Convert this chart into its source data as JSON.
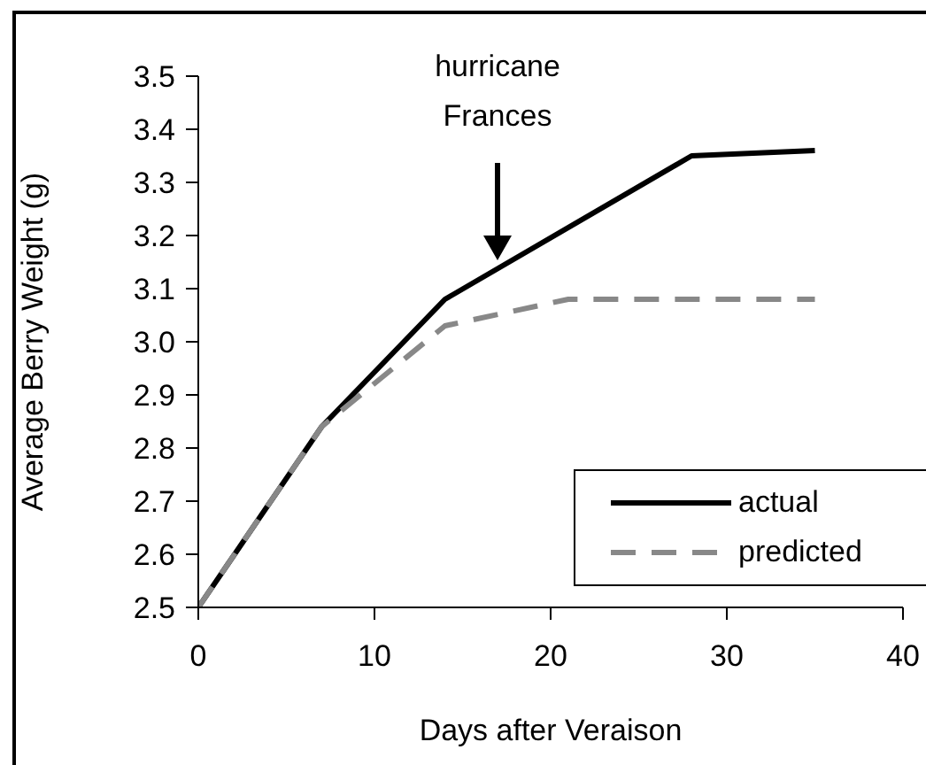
{
  "chart_data": {
    "type": "line",
    "xlabel": "Days after Veraison",
    "ylabel": "Average Berry Weight (g)",
    "xlim": [
      0,
      40
    ],
    "xticks": [
      0,
      10,
      20,
      30,
      40
    ],
    "ylim": [
      2.5,
      3.5
    ],
    "yticks": [
      {
        "value": 2.5,
        "label": "2.5"
      },
      {
        "value": 2.6,
        "label": "2.6"
      },
      {
        "value": 2.7,
        "label": "2.7"
      },
      {
        "value": 2.8,
        "label": "2.8"
      },
      {
        "value": 2.9,
        "label": "2.9"
      },
      {
        "value": 3.0,
        "label": "3.0"
      },
      {
        "value": 3.1,
        "label": "3.1"
      },
      {
        "value": 3.2,
        "label": "3.2"
      },
      {
        "value": 3.3,
        "label": "3.3"
      },
      {
        "value": 3.4,
        "label": "3.4"
      },
      {
        "value": 3.5,
        "label": "3.5"
      }
    ],
    "grid": false,
    "legend": "bottom right",
    "marker": "none",
    "annotations": [
      "hurricane Frances"
    ],
    "series": [
      {
        "name": "actual",
        "color": "#000000",
        "line_style": "solid",
        "x": [
          0,
          7,
          14,
          28,
          35
        ],
        "values": [
          2.5,
          2.84,
          3.08,
          3.35,
          3.36
        ]
      },
      {
        "name": "predicted",
        "color": "#888888",
        "line_style": "dashed",
        "x": [
          0,
          7,
          14,
          21,
          35
        ],
        "values": [
          2.5,
          2.84,
          3.03,
          3.08,
          3.08
        ]
      }
    ]
  }
}
